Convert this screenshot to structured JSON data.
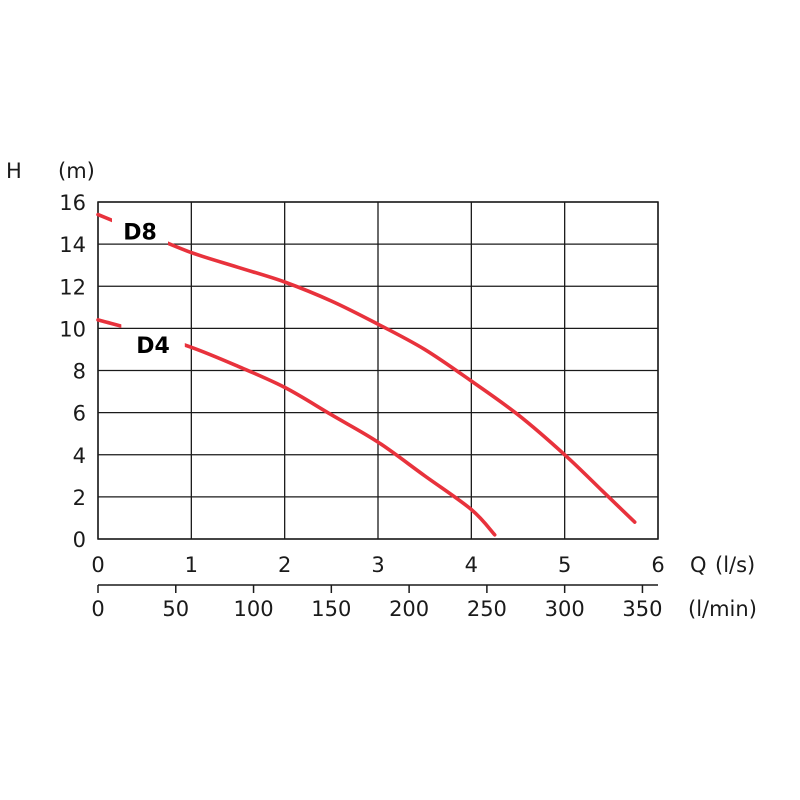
{
  "chart_data": {
    "type": "line",
    "y_axis": {
      "symbol": "H",
      "unit": "(m)",
      "ylim": [
        0,
        16
      ],
      "ticks": [
        "0",
        "2",
        "4",
        "6",
        "8",
        "10",
        "12",
        "14",
        "16"
      ]
    },
    "x_axis": {
      "symbol": "Q",
      "unit": "(l/s)",
      "xlim": [
        0,
        6
      ],
      "ticks": [
        "0",
        "1",
        "2",
        "3",
        "4",
        "5",
        "6"
      ]
    },
    "x_axis_secondary": {
      "unit": "(l/min)",
      "range": [
        0,
        360
      ],
      "ticks": [
        "0",
        "50",
        "100",
        "150",
        "200",
        "250",
        "300",
        "350"
      ]
    },
    "grid": true,
    "colors": {
      "curve": "#e8323c",
      "grid": "#1a1a1a"
    },
    "series": [
      {
        "name": "D8",
        "points": [
          [
            0,
            15.4
          ],
          [
            0.5,
            14.5
          ],
          [
            1,
            13.6
          ],
          [
            1.5,
            12.9
          ],
          [
            2,
            12.2
          ],
          [
            2.5,
            11.3
          ],
          [
            3,
            10.2
          ],
          [
            3.5,
            9.0
          ],
          [
            4,
            7.5
          ],
          [
            4.5,
            5.9
          ],
          [
            5,
            4.0
          ],
          [
            5.4,
            2.3
          ],
          [
            5.75,
            0.8
          ]
        ]
      },
      {
        "name": "D4",
        "points": [
          [
            0,
            10.4
          ],
          [
            0.5,
            9.8
          ],
          [
            1,
            9.1
          ],
          [
            1.5,
            8.2
          ],
          [
            2,
            7.2
          ],
          [
            2.5,
            5.9
          ],
          [
            3,
            4.6
          ],
          [
            3.5,
            3.0
          ],
          [
            4,
            1.4
          ],
          [
            4.25,
            0.2
          ]
        ]
      }
    ]
  }
}
